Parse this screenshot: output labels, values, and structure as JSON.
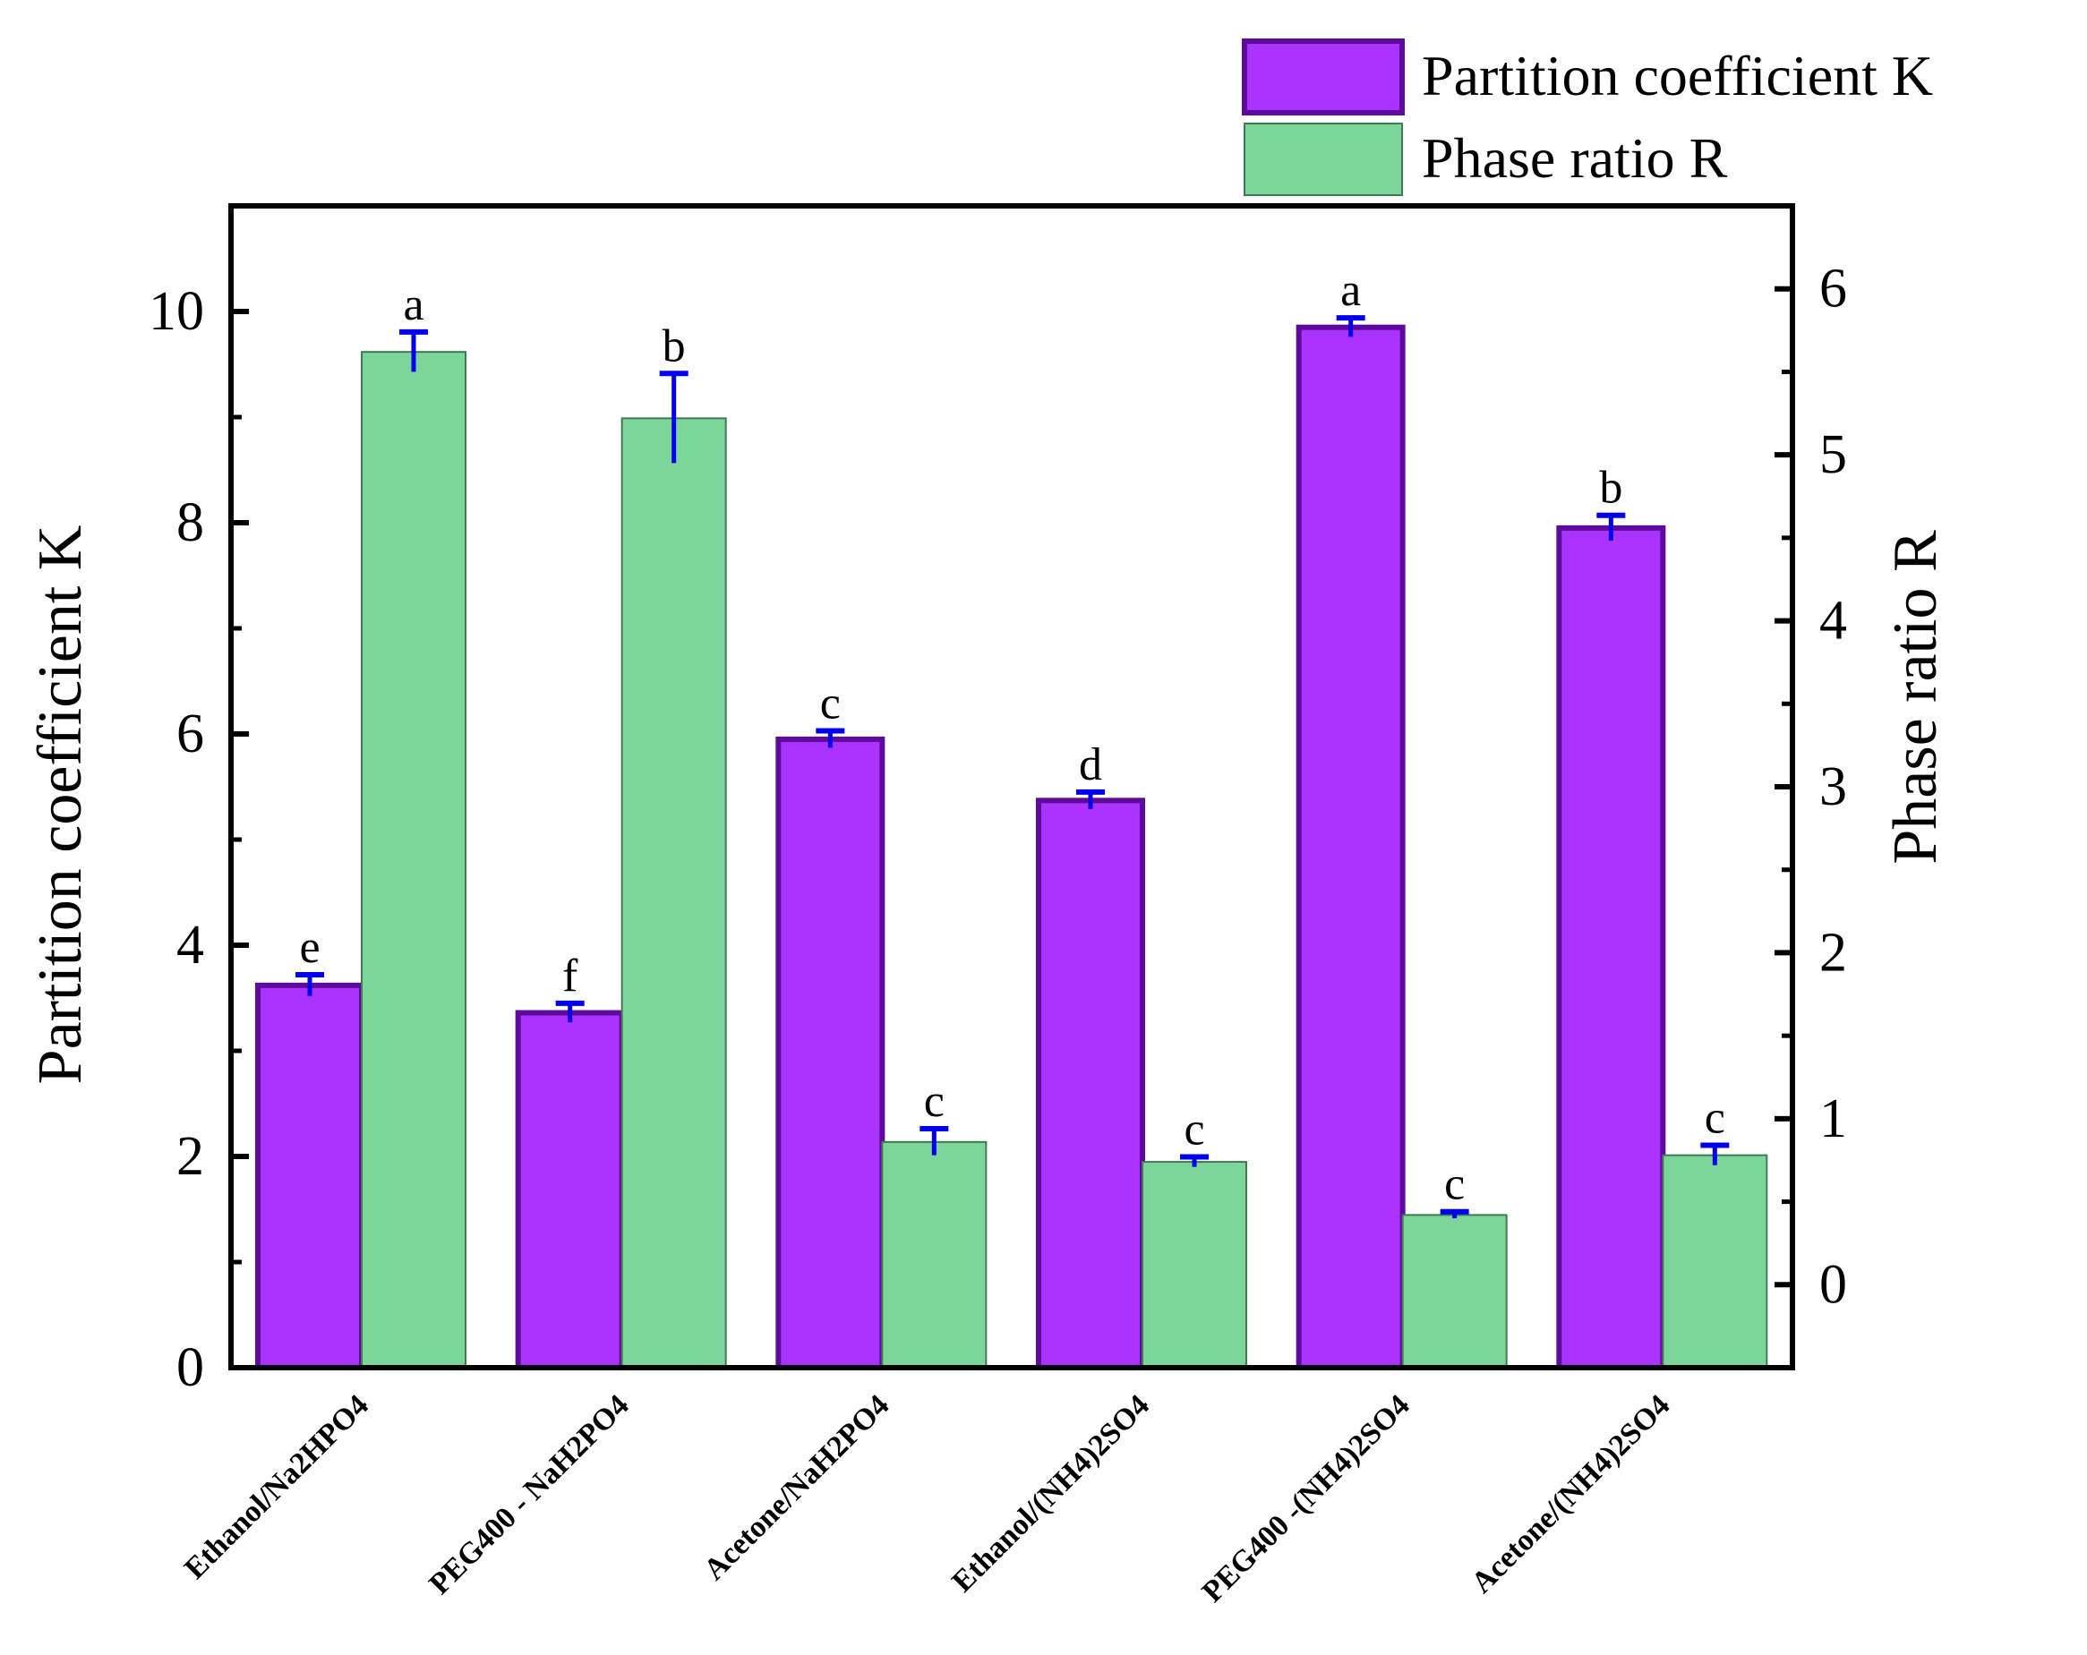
{
  "chart_data": {
    "type": "bar",
    "categories": [
      "Ethanol/Na2HPO4",
      "PEG400 - NaH2PO4",
      "Acetone/NaH2PO4",
      "Ethanol/(NH4)2SO4",
      "PEG400 -(NH4)2SO4",
      "Acetone/(NH4)2SO4"
    ],
    "series": [
      {
        "name": "Partition coefficient  K",
        "axis": "left",
        "color": "#aa33ff",
        "edge_color": "#5e0a9a",
        "values": [
          3.62,
          3.36,
          5.95,
          5.37,
          9.85,
          7.95
        ],
        "errors": [
          0.1,
          0.09,
          0.08,
          0.08,
          0.09,
          0.12
        ],
        "letters": [
          "e",
          "f",
          "c",
          "d",
          "a",
          "b"
        ]
      },
      {
        "name": "Phase ratio  R",
        "axis": "right",
        "color": "#7dd699",
        "edge_color": "#3f7a52",
        "values": [
          5.62,
          5.22,
          0.86,
          0.74,
          0.42,
          0.78
        ],
        "errors": [
          0.12,
          0.27,
          0.08,
          0.03,
          0.02,
          0.06
        ],
        "letters": [
          "a",
          "b",
          "c",
          "c",
          "c",
          "c"
        ]
      }
    ],
    "ylabel": "Partition coefficient  K",
    "y2label": "Phase ratio  R",
    "xlabel": "",
    "ylim": [
      0,
      11
    ],
    "yticks": [
      0,
      2,
      4,
      6,
      8,
      10
    ],
    "y2lim": [
      -0.5,
      6.5
    ],
    "y2ticks": [
      0,
      1,
      2,
      3,
      4,
      5,
      6
    ],
    "legend_position": "top-right",
    "error_bar_color": "#0000ee"
  }
}
